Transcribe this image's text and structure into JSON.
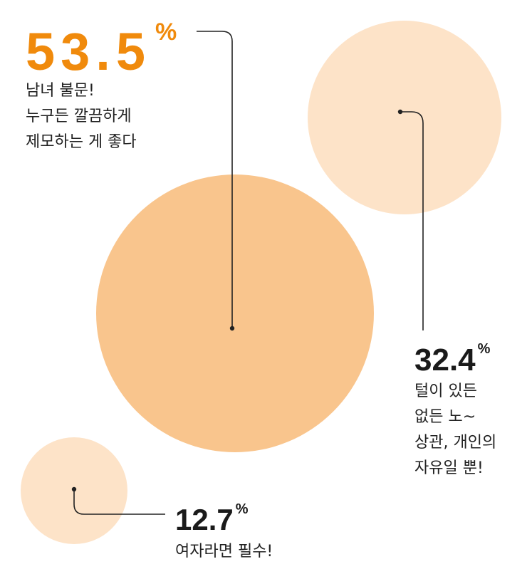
{
  "chart_data": {
    "type": "bubble",
    "title": "",
    "series": [
      {
        "key": "a",
        "value": 53.5,
        "value_label": "53.5",
        "unit": "%",
        "lines": [
          "남녀 불문!",
          "누구든 깔끔하게",
          "제모하는 게 좋다"
        ],
        "fill": "#f9c58d",
        "label_color": "#f08a0c"
      },
      {
        "key": "b",
        "value": 32.4,
        "value_label": "32.4",
        "unit": "%",
        "lines": [
          "털이 있든",
          "없든 노~",
          "상관, 개인의",
          "자유일 뿐!"
        ],
        "fill": "#fde3c8",
        "label_color": "#1a1a1a"
      },
      {
        "key": "c",
        "value": 12.7,
        "value_label": "12.7",
        "unit": "%",
        "lines": [
          "여자라면 필수!"
        ],
        "fill": "#fde3c8",
        "label_color": "#1a1a1a"
      }
    ]
  },
  "colors": {
    "leader_line": "#222222",
    "text": "#222222"
  }
}
